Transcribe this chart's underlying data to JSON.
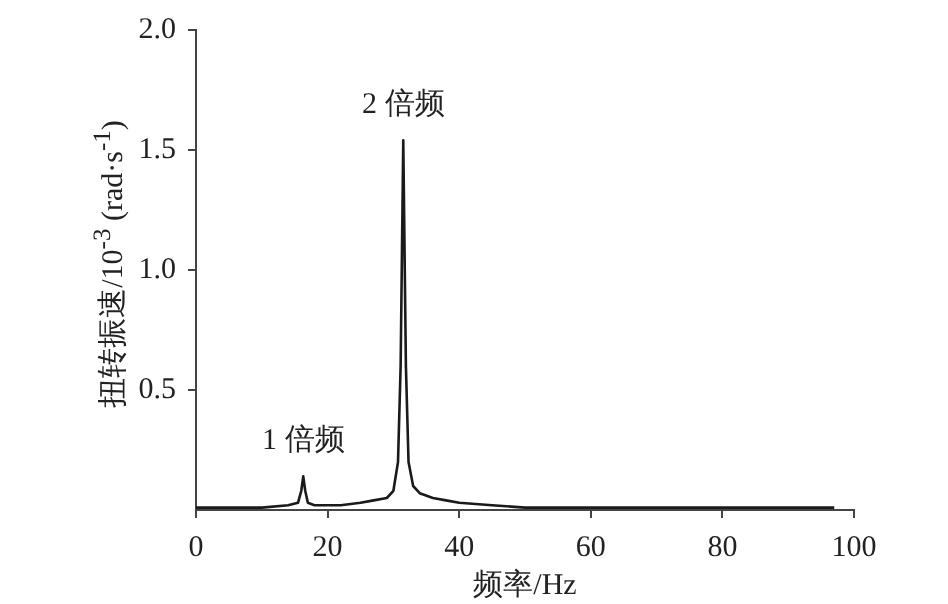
{
  "chart_data": {
    "type": "line",
    "xlabel": "频率/Hz",
    "ylabel": "扭转振速/10$^{-3}$ (rad·s$^{-1}$)",
    "x": [
      0,
      5,
      10,
      14,
      15.5,
      16,
      16.3,
      16.6,
      17,
      18,
      20,
      22,
      25,
      27,
      29,
      30,
      30.7,
      31.1,
      31.5,
      31.9,
      32.3,
      33,
      34,
      36,
      38,
      40,
      45,
      50,
      60,
      70,
      80,
      90,
      97
    ],
    "series": [
      {
        "color": "#1a1a1a",
        "values": [
          0.01,
          0.01,
          0.01,
          0.02,
          0.03,
          0.08,
          0.14,
          0.08,
          0.03,
          0.02,
          0.02,
          0.02,
          0.03,
          0.04,
          0.05,
          0.08,
          0.2,
          0.6,
          1.54,
          0.6,
          0.2,
          0.1,
          0.07,
          0.05,
          0.04,
          0.03,
          0.02,
          0.01,
          0.01,
          0.01,
          0.01,
          0.01,
          0.01
        ]
      }
    ],
    "xlim": [
      0,
      100
    ],
    "xticks": [
      0,
      20,
      40,
      60,
      80,
      100
    ],
    "ylim": [
      0,
      2
    ],
    "yticks": [
      0.5,
      {
        "value": 1,
        "label": "1.0"
      },
      1.5,
      {
        "value": 2,
        "label": "2.0"
      }
    ],
    "annotations": [
      {
        "text": "1 倍频",
        "x": 16.3,
        "y": 0.14
      },
      {
        "text": "2 倍频",
        "x": 31.5,
        "y": 1.54
      }
    ],
    "grid": false,
    "legend": false,
    "marker": "none",
    "line_style": "solid"
  }
}
